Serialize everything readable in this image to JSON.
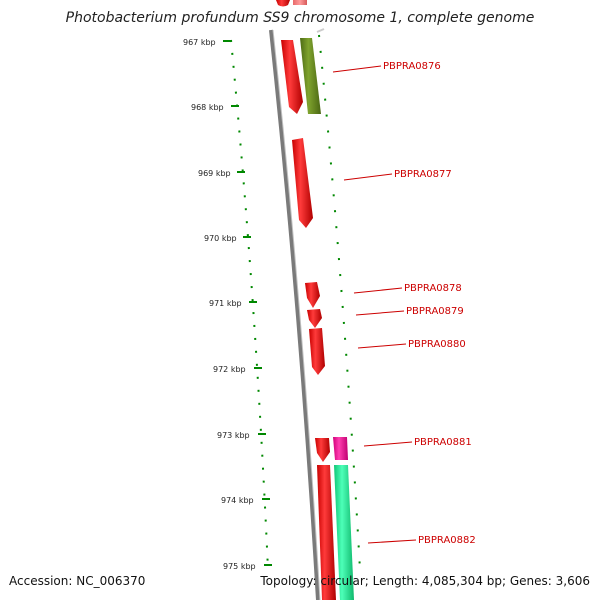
{
  "title": "Photobacterium profundum SS9 chromosome 1, complete genome",
  "footer": {
    "accession": "Accession: NC_006370",
    "info": "Topology: circular; Length: 4,085,304 bp; Genes: 3,606"
  },
  "ticks": [
    "967 kbp",
    "968 kbp",
    "969 kbp",
    "970 kbp",
    "971 kbp",
    "972 kbp",
    "973 kbp",
    "974 kbp",
    "975 kbp"
  ],
  "genes": [
    {
      "id": "PBPRA0876",
      "color": "#ff1a1a"
    },
    {
      "id": "PBPRA0877",
      "color": "#ff1a1a"
    },
    {
      "id": "PBPRA0878",
      "color": "#ff1a1a"
    },
    {
      "id": "PBPRA0879",
      "color": "#ff1a1a"
    },
    {
      "id": "PBPRA0880",
      "color": "#ff1a1a"
    },
    {
      "id": "PBPRA0881",
      "color": "#ff1a1a"
    },
    {
      "id": "PBPRA0882",
      "color": "#ff1a1a"
    }
  ],
  "colors": {
    "backbone": "#8c8c8c",
    "gc_track": "#008800",
    "gene_red": "#ff1a1a",
    "gene_olive": "#6b8e23",
    "gene_pink": "#ff2aa0",
    "gene_mint": "#22ee99",
    "label_red": "#cc0000"
  }
}
